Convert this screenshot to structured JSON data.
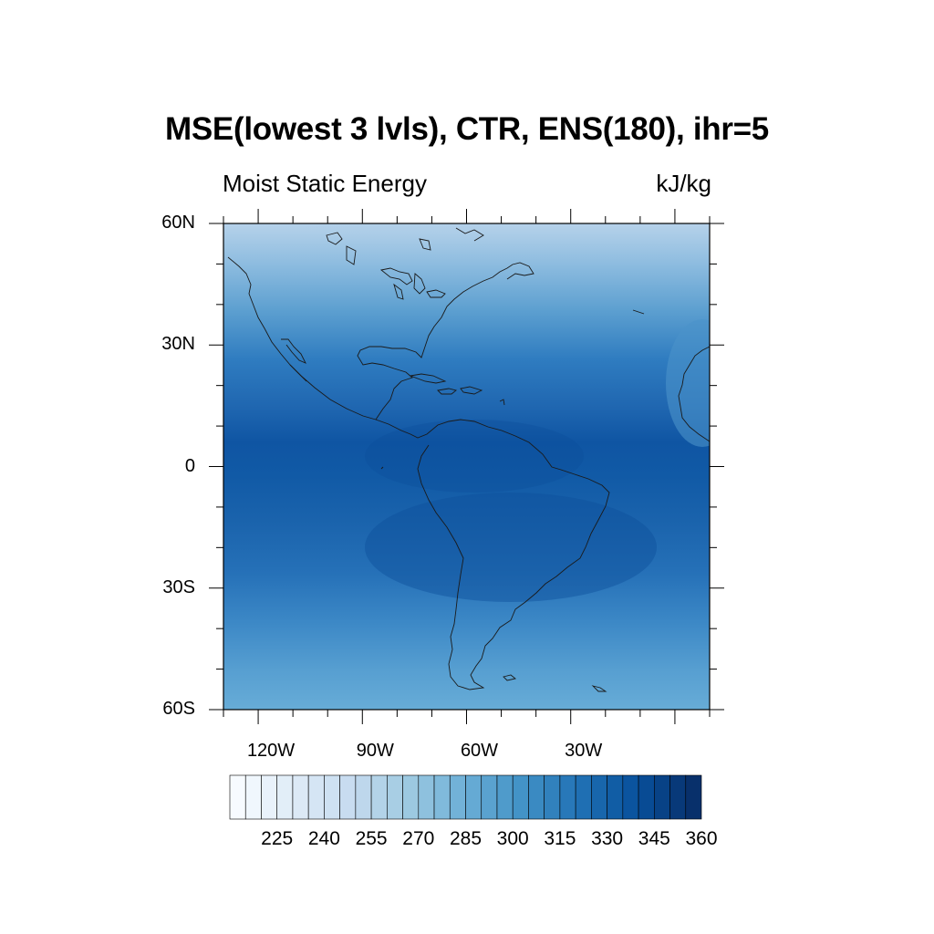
{
  "title": "MSE(lowest 3 lvls), CTR, ENS(180), ihr=5",
  "subtitle_left": "Moist Static Energy",
  "subtitle_right": "kJ/kg",
  "map": {
    "lon_range": [
      -130,
      10
    ],
    "lat_range": [
      -60,
      60
    ],
    "lat_ticks": [
      {
        "value": 60,
        "label": "60N"
      },
      {
        "value": 30,
        "label": "30N"
      },
      {
        "value": 0,
        "label": "0"
      },
      {
        "value": -30,
        "label": "30S"
      },
      {
        "value": -60,
        "label": "60S"
      }
    ],
    "lon_ticks": [
      {
        "value": -120,
        "label": "120W"
      },
      {
        "value": -90,
        "label": "90W"
      },
      {
        "value": -60,
        "label": "60W"
      },
      {
        "value": -30,
        "label": "30W"
      }
    ]
  },
  "colorbar": {
    "labels": [
      "225",
      "240",
      "255",
      "270",
      "285",
      "300",
      "315",
      "330",
      "345",
      "360"
    ],
    "start": 210,
    "step": 5,
    "count": 30,
    "colors_low_high": [
      "#f7fbff",
      "#08306b"
    ]
  }
}
